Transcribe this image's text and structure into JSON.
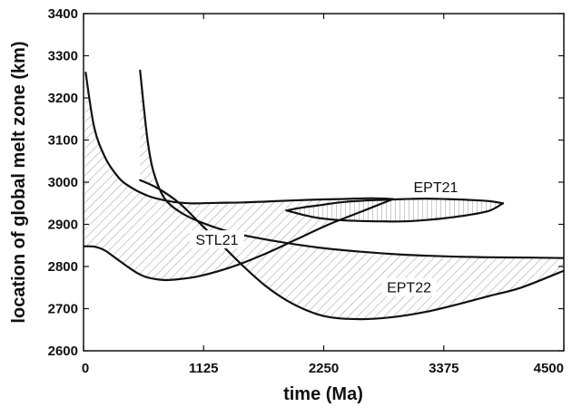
{
  "chart_data": {
    "type": "line",
    "xlabel": "time (Ma)",
    "ylabel": "location of global melt zone (km)",
    "xlim": [
      0,
      4500
    ],
    "ylim": [
      2600,
      3400
    ],
    "xticks": [
      0,
      1125,
      2250,
      3375,
      4500
    ],
    "yticks": [
      2600,
      2700,
      2800,
      2900,
      3000,
      3100,
      3200,
      3300,
      3400
    ],
    "grid": false,
    "legend": "none",
    "colors": {
      "line": "#111111",
      "hatch": "#9a9a9a",
      "background": "#ffffff"
    },
    "regions": [
      {
        "label": "STL21",
        "hatch": "diagonal",
        "upper": {
          "x": [
            20,
            100,
            200,
            300,
            400,
            600,
            800,
            1000,
            1250,
            1500,
            1800,
            2100,
            2400,
            2700,
            2900
          ],
          "y": [
            3260,
            3130,
            3060,
            3020,
            2995,
            2968,
            2955,
            2950,
            2951,
            2952,
            2955,
            2958,
            2960,
            2962,
            2960
          ]
        },
        "lower": {
          "x": [
            0,
            100,
            200,
            300,
            400,
            500,
            600,
            750,
            900,
            1100,
            1400,
            1700,
            2000,
            2300,
            2600,
            2900
          ],
          "y": [
            2848,
            2847,
            2838,
            2820,
            2802,
            2785,
            2774,
            2768,
            2770,
            2778,
            2800,
            2830,
            2865,
            2900,
            2930,
            2960
          ]
        },
        "label_pos": [
          1250,
          2860
        ]
      },
      {
        "label": "EPT22",
        "hatch": "diagonal",
        "upper": {
          "x": [
            530,
            560,
            600,
            650,
            750,
            900,
            1100,
            1400,
            1800,
            2200,
            2600,
            3000,
            3400,
            3800,
            4200,
            4500
          ],
          "y": [
            3265,
            3190,
            3100,
            3030,
            2965,
            2930,
            2905,
            2880,
            2860,
            2845,
            2835,
            2828,
            2824,
            2822,
            2821,
            2820
          ]
        },
        "lower": {
          "x": [
            530,
            700,
            900,
            1100,
            1300,
            1500,
            1700,
            1900,
            2100,
            2300,
            2600,
            2900,
            3200,
            3500,
            3800,
            4100,
            4500
          ],
          "y": [
            3005,
            2985,
            2950,
            2900,
            2850,
            2800,
            2755,
            2720,
            2695,
            2680,
            2675,
            2680,
            2692,
            2710,
            2730,
            2750,
            2790
          ]
        },
        "label_pos": [
          3050,
          2747
        ]
      },
      {
        "label": "EPT21",
        "hatch": "vertical",
        "upper": {
          "x": [
            1900,
            2050,
            2200,
            2400,
            2600,
            2800,
            3000,
            3200,
            3400,
            3600,
            3800,
            3930
          ],
          "y": [
            2933,
            2940,
            2945,
            2952,
            2956,
            2958,
            2960,
            2961,
            2960,
            2958,
            2955,
            2950
          ]
        },
        "lower": {
          "x": [
            1900,
            2050,
            2200,
            2400,
            2600,
            2800,
            3000,
            3200,
            3400,
            3600,
            3800,
            3930
          ],
          "y": [
            2933,
            2923,
            2915,
            2910,
            2908,
            2907,
            2907,
            2910,
            2915,
            2922,
            2932,
            2950
          ]
        },
        "label_pos": [
          3300,
          2985
        ]
      }
    ]
  }
}
